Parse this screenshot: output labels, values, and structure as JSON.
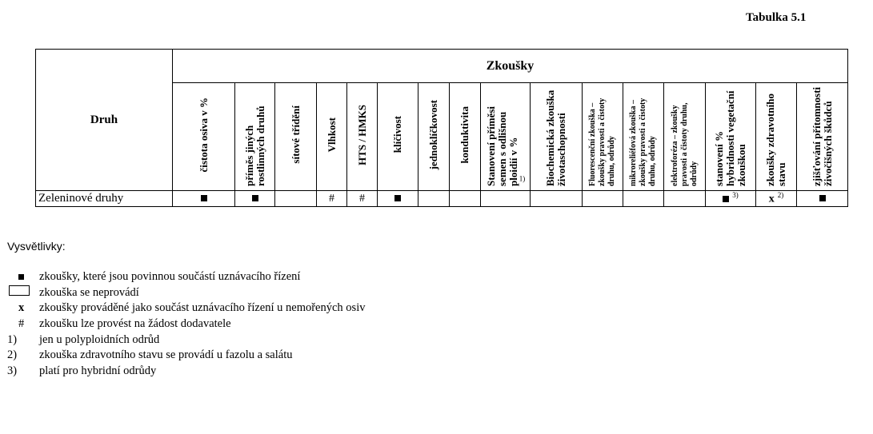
{
  "title": "Tabulka 5.1",
  "table": {
    "druh_header": "Druh",
    "group_header": "Zkoušky",
    "columns": [
      {
        "label": "čistota osiva v %",
        "small": false
      },
      {
        "label": "příměs jiných rostlinných druhů",
        "small": false
      },
      {
        "label": "sítové třídění",
        "small": false
      },
      {
        "label": "Vlhkost",
        "small": false
      },
      {
        "label": "HTS / HMKS",
        "small": false
      },
      {
        "label": "klíčivost",
        "small": false
      },
      {
        "label": "jednoklíčkovost",
        "small": false
      },
      {
        "label": "konduktivita",
        "small": false
      },
      {
        "label": "Stanovení příměsi semen s odlišnou ploidií v %",
        "sup": "1)",
        "small": false
      },
      {
        "label": "Biochemická zkouška životaschopnosti",
        "small": false
      },
      {
        "label": "Fluorescenční zkouška – zkoušky pravosti a čistoty druhu, odrůdy",
        "small": true
      },
      {
        "label": "mikroreliéfová zkouška – zkoušky pravosti a čistoty druhu, odrůdy",
        "small": true
      },
      {
        "label": "elektroforéza – zkoušky pravosti a čistoty druhu, odrůdy",
        "small": true
      },
      {
        "label": "stanovení % hybridnosti vegetační zkouškou",
        "small": false
      },
      {
        "label": "zkoušky zdravotního stavu",
        "small": false
      },
      {
        "label": "zjišťování přítomnosti živočišných škůdců",
        "small": false
      }
    ],
    "rows": [
      {
        "name": "Zeleninové druhy",
        "cells": [
          {
            "v": "■"
          },
          {
            "v": "■"
          },
          {
            "v": ""
          },
          {
            "v": "#"
          },
          {
            "v": "#"
          },
          {
            "v": "■"
          },
          {
            "v": ""
          },
          {
            "v": ""
          },
          {
            "v": ""
          },
          {
            "v": ""
          },
          {
            "v": ""
          },
          {
            "v": ""
          },
          {
            "v": ""
          },
          {
            "v": "■",
            "sup": "3)"
          },
          {
            "v": "x",
            "sup": "2)"
          },
          {
            "v": "■"
          }
        ]
      }
    ]
  },
  "legend": {
    "heading": "Vysvětlivky:",
    "items": [
      {
        "symbol": "■",
        "text": "zkoušky, které jsou povinnou součástí uznávacího řízení"
      },
      {
        "symbol": "box",
        "text": "zkouška se neprovádí"
      },
      {
        "symbol": "x",
        "text": "zkoušky prováděné jako součást uznávacího řízení u nemořených osiv"
      },
      {
        "symbol": "#",
        "text": "zkoušku lze provést na žádost dodavatele"
      },
      {
        "symbol": "1)",
        "text": "jen u polyploidních odrůd"
      },
      {
        "symbol": "2)",
        "text": "zkouška zdravotního stavu se provádí u fazolu a salátu"
      },
      {
        "symbol": "3)",
        "text": "platí pro hybridní odrůdy"
      }
    ]
  }
}
